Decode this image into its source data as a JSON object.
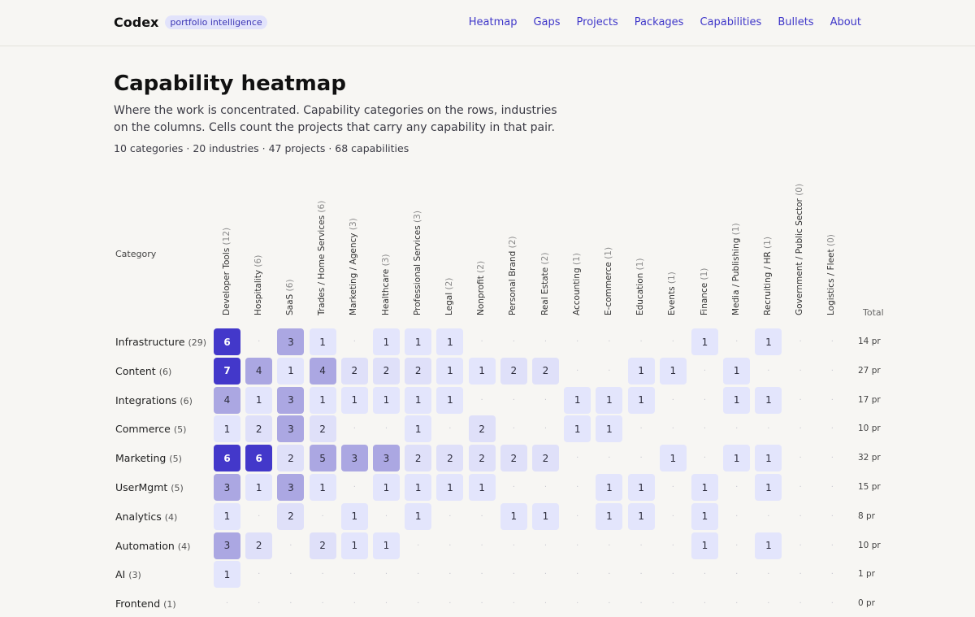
{
  "brand": {
    "name": "Codex",
    "badge": "portfolio intelligence"
  },
  "nav": [
    "Heatmap",
    "Gaps",
    "Projects",
    "Packages",
    "Capabilities",
    "Bullets",
    "About"
  ],
  "page": {
    "title": "Capability heatmap",
    "subtitle": "Where the work is concentrated. Capability categories on the rows, industries on the columns. Cells count the projects that carry any capability in that pair.",
    "stats": "10 categories · 20 industries · 47 projects · 68 capabilities"
  },
  "heatmap": {
    "category_header": "Category",
    "total_header": "Total",
    "empty_marker": "·",
    "colors": {
      "level1": "#e3e5fc",
      "level2": "#aba7e2",
      "level3": "#4338ca",
      "text_dark": "#2c2c3c",
      "text_light": "#ffffff"
    },
    "industries": [
      {
        "name": "Developer Tools",
        "count": "(12)"
      },
      {
        "name": "Hospitality",
        "count": "(6)"
      },
      {
        "name": "SaaS",
        "count": "(6)"
      },
      {
        "name": "Trades / Home Services",
        "count": "(6)"
      },
      {
        "name": "Marketing / Agency",
        "count": "(3)"
      },
      {
        "name": "Healthcare",
        "count": "(3)"
      },
      {
        "name": "Professional Services",
        "count": "(3)"
      },
      {
        "name": "Legal",
        "count": "(2)"
      },
      {
        "name": "Nonprofit",
        "count": "(2)"
      },
      {
        "name": "Personal Brand",
        "count": "(2)"
      },
      {
        "name": "Real Estate",
        "count": "(2)"
      },
      {
        "name": "Accounting",
        "count": "(1)"
      },
      {
        "name": "E-commerce",
        "count": "(1)"
      },
      {
        "name": "Education",
        "count": "(1)"
      },
      {
        "name": "Events",
        "count": "(1)"
      },
      {
        "name": "Finance",
        "count": "(1)"
      },
      {
        "name": "Media / Publishing",
        "count": "(1)"
      },
      {
        "name": "Recruiting / HR",
        "count": "(1)"
      },
      {
        "name": "Government / Public Sector",
        "count": "(0)"
      },
      {
        "name": "Logistics / Fleet",
        "count": "(0)"
      }
    ],
    "rows": [
      {
        "category": "Infrastructure",
        "count": "(29)",
        "total": "14 pr",
        "cells": [
          6,
          0,
          3,
          1,
          0,
          1,
          1,
          1,
          0,
          0,
          0,
          0,
          0,
          0,
          0,
          1,
          0,
          1,
          0,
          0
        ]
      },
      {
        "category": "Content",
        "count": "(6)",
        "total": "27 pr",
        "cells": [
          7,
          4,
          1,
          4,
          2,
          2,
          2,
          1,
          1,
          2,
          2,
          0,
          0,
          1,
          1,
          0,
          1,
          0,
          0,
          0
        ]
      },
      {
        "category": "Integrations",
        "count": "(6)",
        "total": "17 pr",
        "cells": [
          4,
          1,
          3,
          1,
          1,
          1,
          1,
          1,
          0,
          0,
          0,
          1,
          1,
          1,
          0,
          0,
          1,
          1,
          0,
          0
        ]
      },
      {
        "category": "Commerce",
        "count": "(5)",
        "total": "10 pr",
        "cells": [
          1,
          2,
          3,
          2,
          0,
          0,
          1,
          0,
          2,
          0,
          0,
          1,
          1,
          0,
          0,
          0,
          0,
          0,
          0,
          0
        ]
      },
      {
        "category": "Marketing",
        "count": "(5)",
        "total": "32 pr",
        "cells": [
          6,
          6,
          2,
          5,
          3,
          3,
          2,
          2,
          2,
          2,
          2,
          0,
          0,
          0,
          1,
          0,
          1,
          1,
          0,
          0
        ]
      },
      {
        "category": "UserMgmt",
        "count": "(5)",
        "total": "15 pr",
        "cells": [
          3,
          1,
          3,
          1,
          0,
          1,
          1,
          1,
          1,
          0,
          0,
          0,
          1,
          1,
          0,
          1,
          0,
          1,
          0,
          0
        ]
      },
      {
        "category": "Analytics",
        "count": "(4)",
        "total": "8 pr",
        "cells": [
          1,
          0,
          2,
          0,
          1,
          0,
          1,
          0,
          0,
          1,
          1,
          0,
          1,
          1,
          0,
          1,
          0,
          0,
          0,
          0
        ]
      },
      {
        "category": "Automation",
        "count": "(4)",
        "total": "10 pr",
        "cells": [
          3,
          2,
          0,
          2,
          1,
          1,
          0,
          0,
          0,
          0,
          0,
          0,
          0,
          0,
          0,
          1,
          0,
          1,
          0,
          0
        ]
      },
      {
        "category": "AI",
        "count": "(3)",
        "total": "1 pr",
        "cells": [
          1,
          0,
          0,
          0,
          0,
          0,
          0,
          0,
          0,
          0,
          0,
          0,
          0,
          0,
          0,
          0,
          0,
          0,
          0,
          0
        ]
      },
      {
        "category": "Frontend",
        "count": "(1)",
        "total": "0 pr",
        "cells": [
          0,
          0,
          0,
          0,
          0,
          0,
          0,
          0,
          0,
          0,
          0,
          0,
          0,
          0,
          0,
          0,
          0,
          0,
          0,
          0
        ]
      }
    ]
  }
}
